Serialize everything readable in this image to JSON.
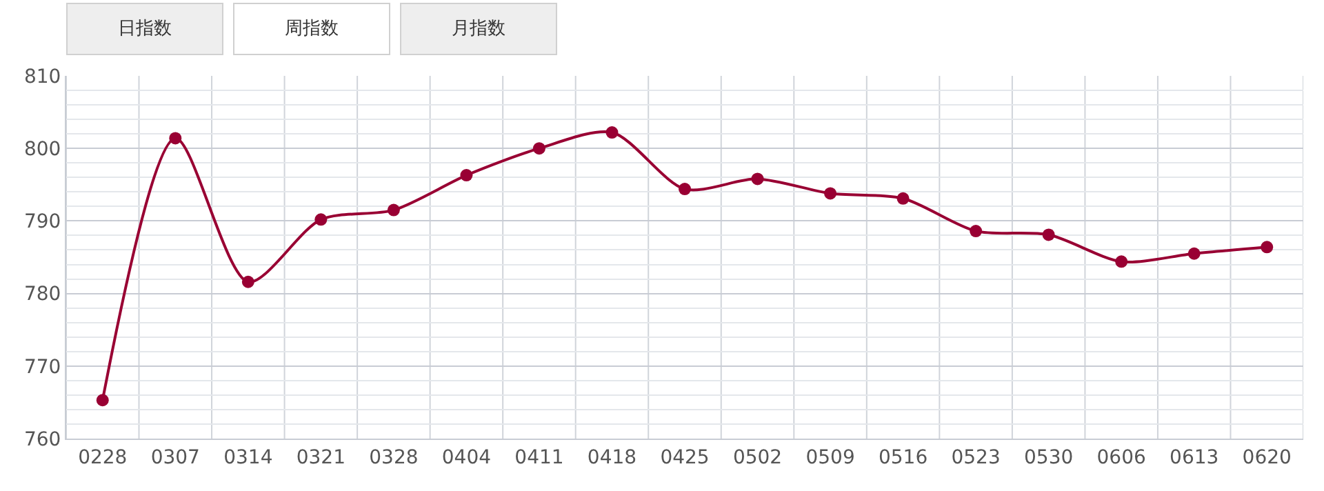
{
  "chart_data": {
    "type": "line",
    "annotations": [
      "日指数",
      "周指数",
      "月指数"
    ],
    "categories": [
      "0228",
      "0307",
      "0314",
      "0321",
      "0328",
      "0404",
      "0411",
      "0418",
      "0425",
      "0502",
      "0509",
      "0516",
      "0523",
      "0530",
      "0606",
      "0613",
      "0620"
    ],
    "series": [
      {
        "color": "#990033",
        "values": [
          765.3,
          801.4,
          781.6,
          790.2,
          791.5,
          796.3,
          800.0,
          802.2,
          794.4,
          795.8,
          793.8,
          793.1,
          788.6,
          788.1,
          784.4,
          785.5,
          786.4
        ]
      }
    ],
    "ylim": [
      760,
      810
    ],
    "yticks": [
      760,
      770,
      780,
      790,
      800,
      810
    ],
    "grid": true,
    "marker": "circle",
    "line_style": "solid",
    "legend": false
  }
}
